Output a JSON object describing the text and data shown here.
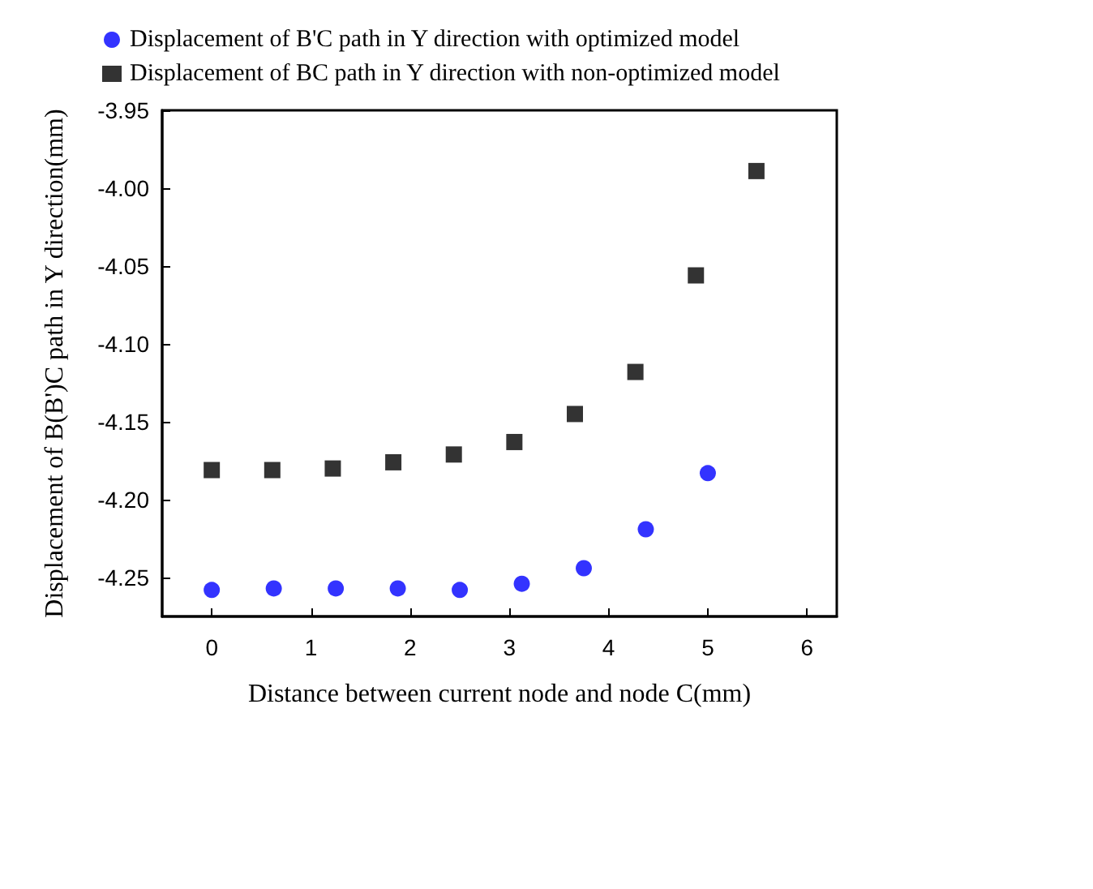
{
  "chart_data": {
    "type": "scatter",
    "xlabel": "Distance between current node and node C(mm)",
    "ylabel": "Displacement of B(B')C path in Y direction(mm)",
    "xlim": [
      -0.5,
      6.3
    ],
    "xticks": [
      0,
      1,
      2,
      3,
      4,
      5,
      6
    ],
    "ylim": [
      -4.275,
      -3.95
    ],
    "yticks": [
      -4.25,
      {
        "value": -4.2,
        "label": "-4.20"
      },
      -4.15,
      {
        "value": -4.1,
        "label": "-4.10"
      },
      -4.05,
      {
        "value": -4,
        "label": "-4.00"
      },
      -3.95
    ],
    "legend": "top left",
    "grid": false,
    "series": [
      {
        "name": "Displacement of B'C path in Y direction with optimized model",
        "color": "#0000ff",
        "marker": "circle",
        "x": [
          0,
          0.625,
          1.25,
          1.875,
          2.5,
          3.125,
          3.75,
          4.375,
          5.0
        ],
        "values": [
          -4.258,
          -4.257,
          -4.257,
          -4.257,
          -4.258,
          -4.254,
          -4.244,
          -4.219,
          -4.183
        ]
      },
      {
        "name": "Displacement of BC path in Y direction with non-optimized model",
        "color": "#000000",
        "marker": "square",
        "x": [
          0,
          0.61,
          1.22,
          1.83,
          2.44,
          3.05,
          3.66,
          4.27,
          4.88,
          5.49
        ],
        "values": [
          -4.181,
          -4.181,
          -4.18,
          -4.176,
          -4.171,
          -4.163,
          -4.145,
          -4.118,
          -4.056,
          -3.989
        ]
      }
    ]
  }
}
